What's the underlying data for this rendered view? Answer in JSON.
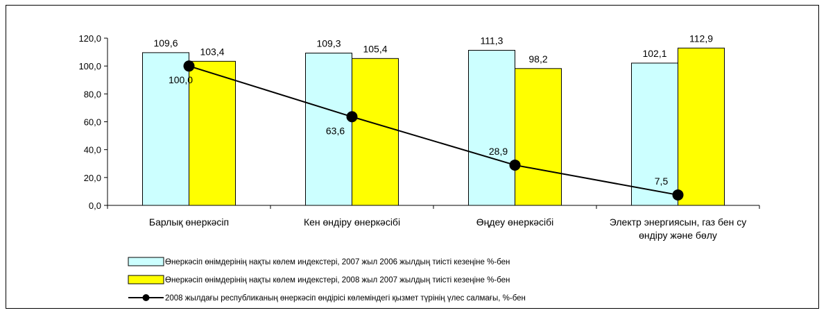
{
  "chart_data": {
    "type": "bar",
    "categories": [
      [
        "Барлық өнеркәсіп"
      ],
      [
        "Кен өндіру өнеркәсібі"
      ],
      [
        "Өңдеу өнеркәсібі"
      ],
      [
        "Электр энергиясын, газ бен су",
        "өндіру және бөлу"
      ]
    ],
    "series": [
      {
        "name": "Өнеркәсіп өнімдерінің нақты көлем индекстері, 2007 жыл 2006 жылдың тиісті кезеңіне %-бен",
        "type": "bar",
        "color": "#ccffff",
        "values": [
          109.6,
          109.3,
          111.3,
          102.1
        ],
        "labels": [
          "109,6",
          "109,3",
          "111,3",
          "102,1"
        ]
      },
      {
        "name": "Өнеркәсіп өнімдерінің нақты көлем индекстері, 2008 жыл 2007 жылдың тиісті кезеңіне %-бен",
        "type": "bar",
        "color": "#ffff00",
        "values": [
          103.4,
          105.4,
          98.2,
          112.9
        ],
        "labels": [
          "103,4",
          "105,4",
          "98,2",
          "112,9"
        ]
      },
      {
        "name": "2008 жылдағы республиканың өнеркәсіп өндірісі көлеміндегі қызмет түрінің үлес салмағы, %-бен",
        "type": "line",
        "color": "#000000",
        "values": [
          100.0,
          63.6,
          28.9,
          7.5
        ],
        "labels": [
          "100,0",
          "63,6",
          "28,9",
          "7,5"
        ]
      }
    ],
    "ylim": [
      0,
      120
    ],
    "yticks": [
      0,
      20,
      40,
      60,
      80,
      100,
      120
    ],
    "ytick_labels": [
      "0,0",
      "20,0",
      "40,0",
      "60,0",
      "80,0",
      "100,0",
      "120,0"
    ],
    "grid": false,
    "legend_position": "bottom"
  }
}
